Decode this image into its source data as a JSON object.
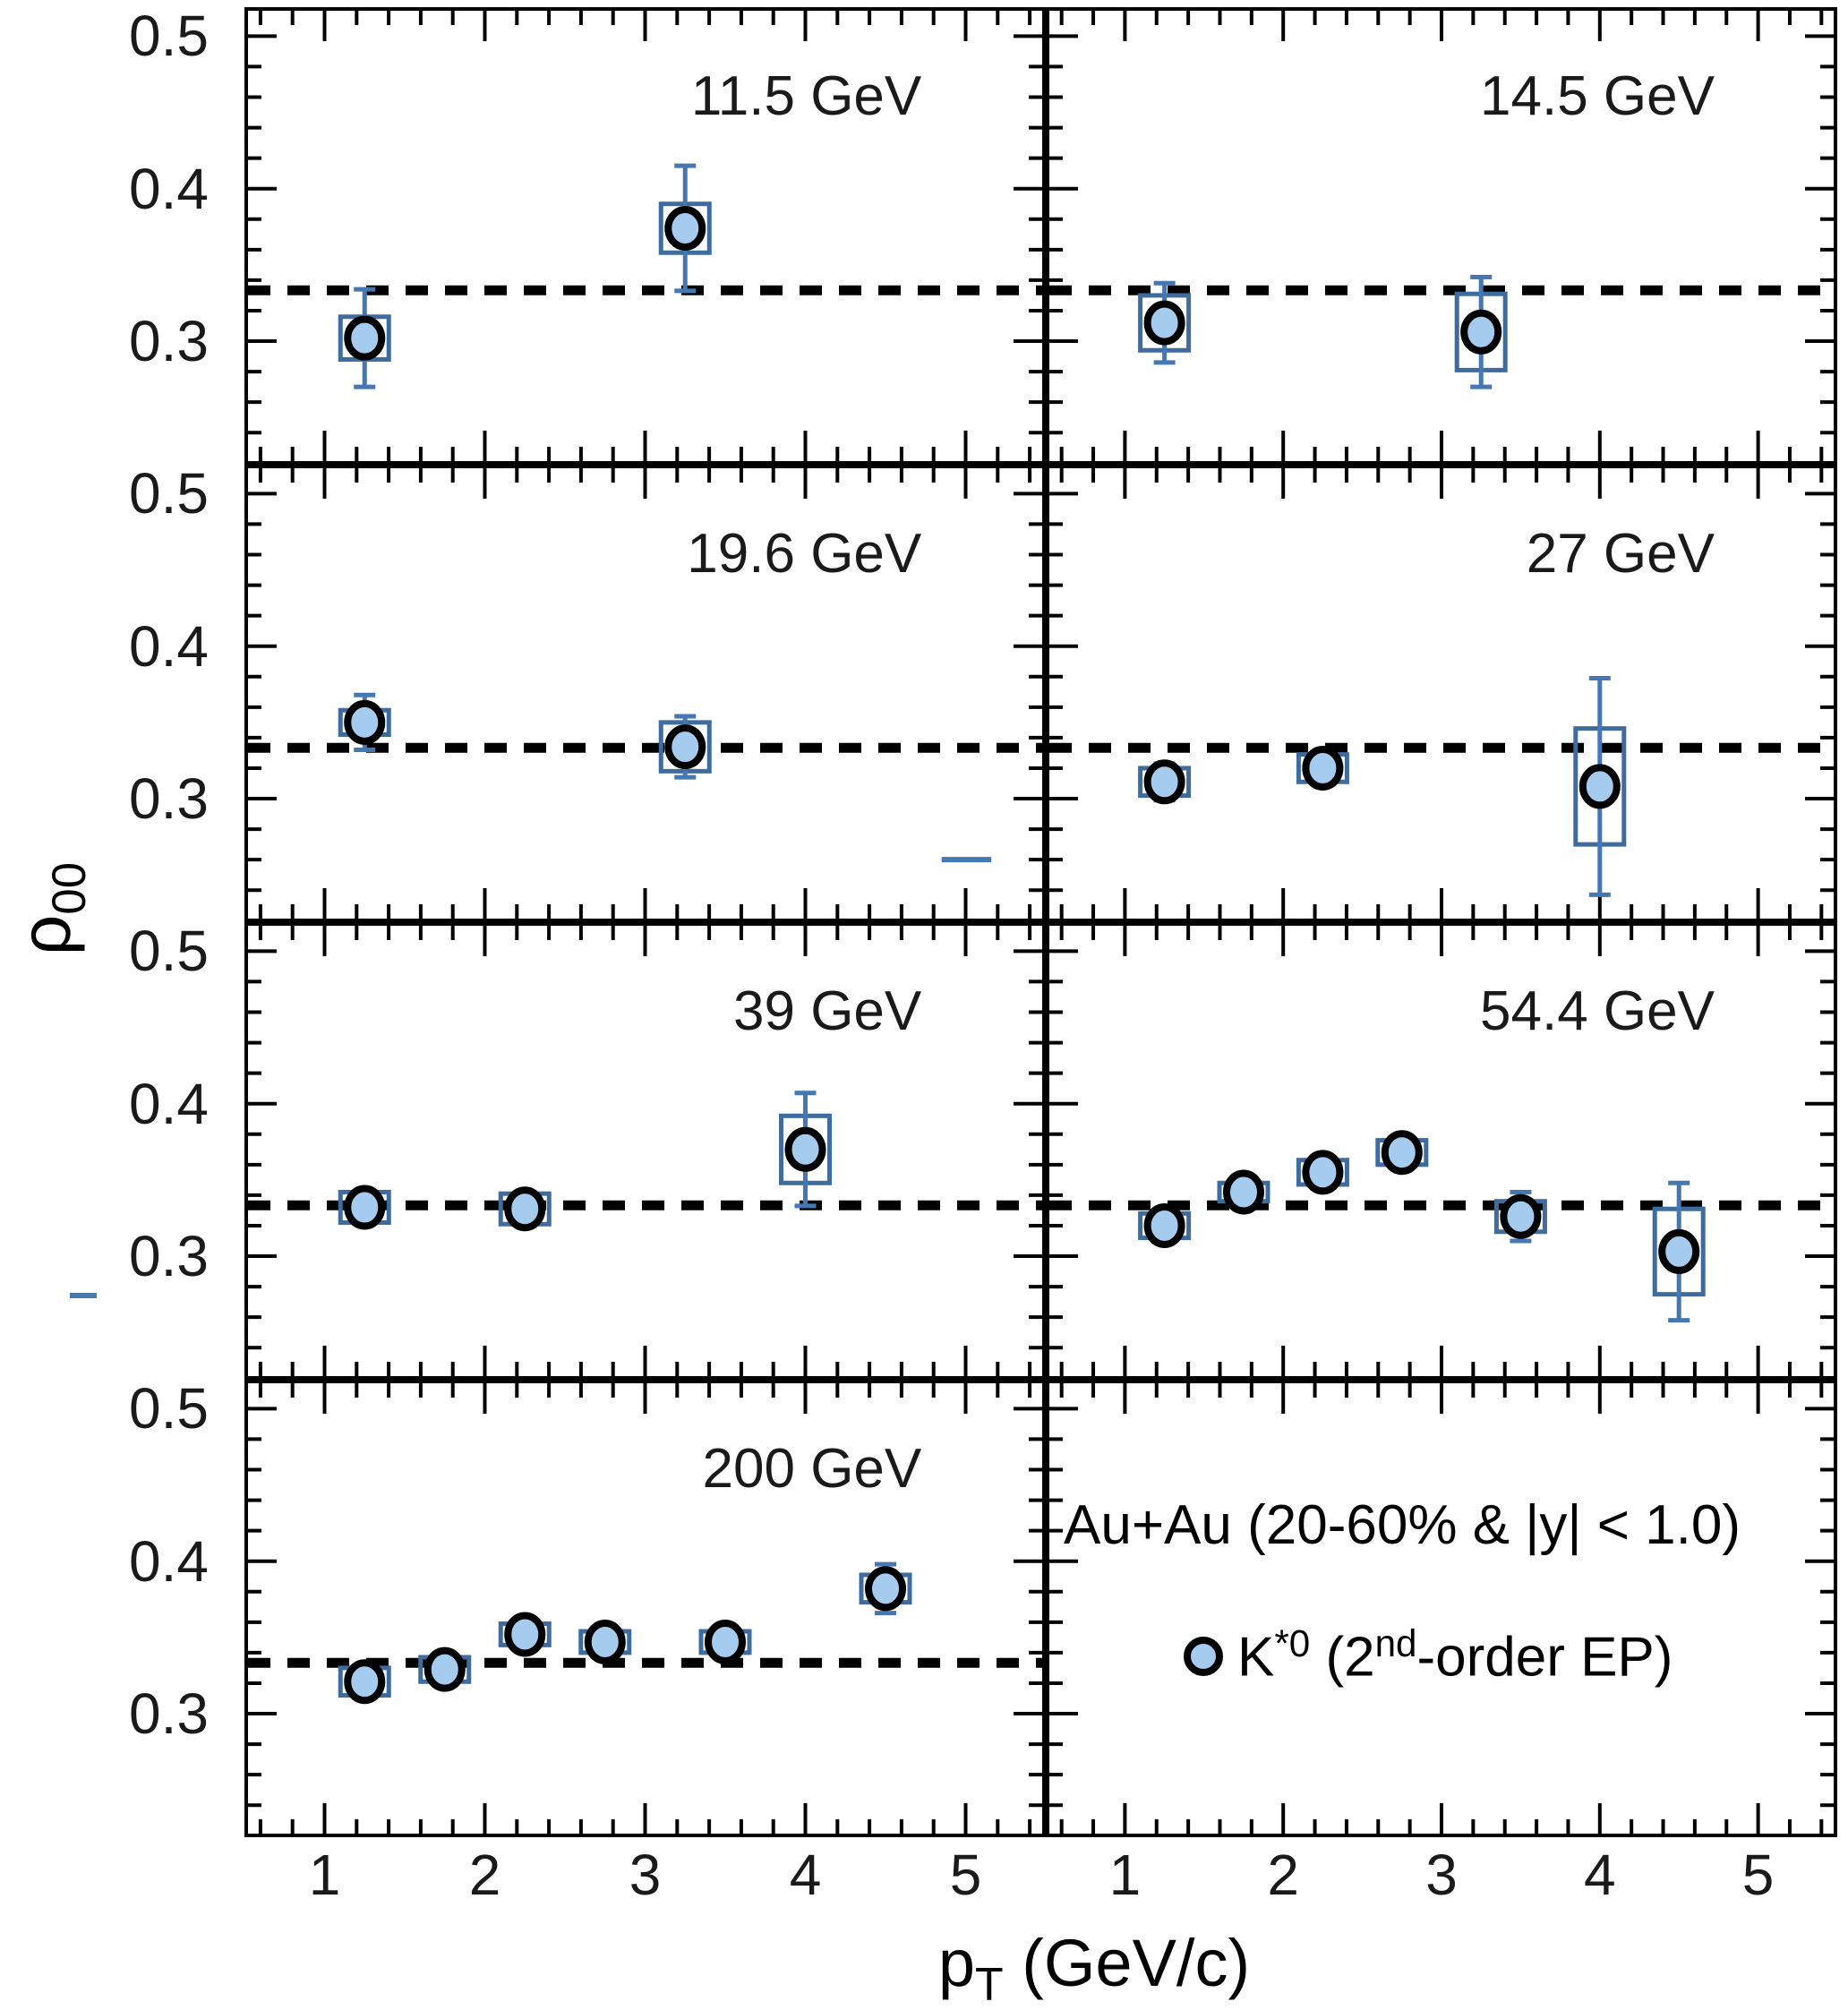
{
  "axes": {
    "y_title_main": "ρ",
    "y_title_sub": "00",
    "x_title_main": "p",
    "x_title_sub": "T",
    "x_title_rest": " (GeV/c)",
    "y_tick_labels": [
      "0.5",
      "0.4",
      "0.3"
    ],
    "x_tick_labels": [
      "1",
      "2",
      "3",
      "4",
      "5"
    ]
  },
  "legend": {
    "system_label": "Au+Au (20-60% & |y| < 1.0)",
    "series_pre": "K",
    "series_sup1": "*0",
    "series_mid": " (2",
    "series_sup2": "nd",
    "series_post": "-order EP)"
  },
  "colors": {
    "marker_fill": "#a5cbef",
    "marker_edge": "#000000",
    "stat_error": "#4577b3",
    "sys_box": "#3e6c9e",
    "dashed_line": "#000000",
    "axis": "#000000"
  },
  "chart_data": {
    "type": "scatter",
    "xlabel": "pT (GeV/c)",
    "ylabel": "rho00",
    "xlim": [
      0.5,
      5.5
    ],
    "ylim": [
      0.219,
      0.519
    ],
    "x_major_ticks": [
      1,
      2,
      3,
      4,
      5
    ],
    "y_major_ticks": [
      0.3,
      0.4,
      0.5
    ],
    "x_minor_step": 0.2,
    "y_minor_step": 0.02,
    "dashed_reference_y": 0.3333,
    "grid": false,
    "legend_position": "bottom-right-panel",
    "panels": [
      {
        "title": "11.5 GeV",
        "x": [
          1.25,
          3.25
        ],
        "y": [
          0.302,
          0.374
        ],
        "stat_err": [
          0.032,
          0.041
        ],
        "sys_err": [
          0.014,
          0.016
        ]
      },
      {
        "title": "14.5 GeV",
        "x": [
          1.25,
          3.25
        ],
        "y": [
          0.312,
          0.306
        ],
        "stat_err": [
          0.026,
          0.036
        ],
        "sys_err": [
          0.018,
          0.025
        ]
      },
      {
        "title": "19.6 GeV",
        "x": [
          1.25,
          3.25
        ],
        "y": [
          0.35,
          0.334
        ],
        "stat_err": [
          0.018,
          0.02
        ],
        "sys_err": [
          0.008,
          0.016
        ],
        "extra_marks": [
          {
            "x1": 4.85,
            "x2": 5.16,
            "y": 0.26
          }
        ]
      },
      {
        "title": "27 GeV",
        "x": [
          1.25,
          2.25,
          4.0
        ],
        "y": [
          0.311,
          0.32,
          0.308
        ],
        "stat_err": [
          0.012,
          0.011,
          0.071
        ],
        "sys_err": [
          0.009,
          0.009,
          0.038
        ]
      },
      {
        "title": "39 GeV",
        "x": [
          1.25,
          2.25,
          4.0
        ],
        "y": [
          0.332,
          0.331,
          0.37
        ],
        "stat_err": [
          0.01,
          0.01,
          0.037
        ],
        "sys_err": [
          0.01,
          0.01,
          0.022
        ]
      },
      {
        "title": "54.4 GeV",
        "x": [
          1.25,
          1.75,
          2.25,
          2.75,
          3.5,
          4.5
        ],
        "y": [
          0.32,
          0.342,
          0.355,
          0.368,
          0.326,
          0.303
        ],
        "stat_err": [
          0.01,
          0.008,
          0.008,
          0.01,
          0.016,
          0.045
        ],
        "sys_err": [
          0.008,
          0.006,
          0.008,
          0.008,
          0.01,
          0.028
        ]
      },
      {
        "title": "200 GeV",
        "x": [
          1.25,
          1.75,
          2.25,
          2.75,
          3.5,
          4.5
        ],
        "y": [
          0.321,
          0.329,
          0.352,
          0.347,
          0.347,
          0.382
        ],
        "stat_err": [
          0.007,
          0.006,
          0.006,
          0.006,
          0.008,
          0.016
        ],
        "sys_err": [
          0.009,
          0.008,
          0.007,
          0.007,
          0.007,
          0.009
        ]
      },
      {
        "title": "",
        "legend_panel": true,
        "x": [],
        "y": [],
        "stat_err": [],
        "sys_err": []
      }
    ]
  }
}
